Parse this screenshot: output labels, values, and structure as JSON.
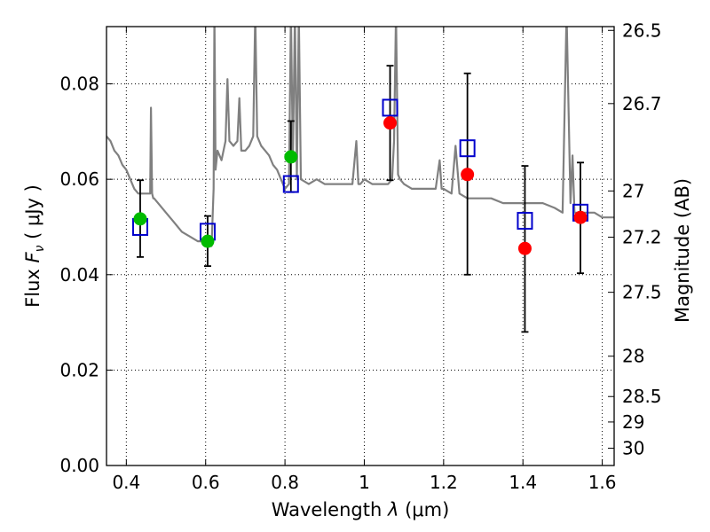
{
  "chart_data": {
    "type": "scatter",
    "xlabel": "Wavelength  λ (μm)",
    "ylabel": "Flux  Fν  ( μJy )",
    "ylabel_parts": {
      "pre": "Flux  ",
      "var": "F",
      "sub": "ν",
      "post": "  ( μJy )"
    },
    "xlabel_parts": {
      "pre": "Wavelength  ",
      "var": "λ",
      "post": " (μm)"
    },
    "y2label": "Magnitude (AB)",
    "xlim": [
      0.35,
      1.63
    ],
    "ylim": [
      0.0,
      0.092
    ],
    "grid": true,
    "x_ticks": [
      {
        "value": 0.4,
        "label": "0.4"
      },
      {
        "value": 0.6,
        "label": "0.6"
      },
      {
        "value": 0.8,
        "label": "0.8"
      },
      {
        "value": 1.0,
        "label": "1"
      },
      {
        "value": 1.2,
        "label": "1.2"
      },
      {
        "value": 1.4,
        "label": "1.4"
      },
      {
        "value": 1.6,
        "label": "1.6"
      }
    ],
    "y_ticks": [
      {
        "value": 0.0,
        "label": "0.00"
      },
      {
        "value": 0.02,
        "label": "0.02"
      },
      {
        "value": 0.04,
        "label": "0.04"
      },
      {
        "value": 0.06,
        "label": "0.06"
      },
      {
        "value": 0.08,
        "label": "0.08"
      }
    ],
    "y2_ticks": [
      {
        "mag": 26.5,
        "label": "26.5"
      },
      {
        "mag": 26.7,
        "label": "26.7"
      },
      {
        "mag": 27.0,
        "label": "27"
      },
      {
        "mag": 27.2,
        "label": "27.2"
      },
      {
        "mag": 27.5,
        "label": "27.5"
      },
      {
        "mag": 28.0,
        "label": "28"
      },
      {
        "mag": 28.5,
        "label": "28.5"
      },
      {
        "mag": 29.0,
        "label": "29"
      },
      {
        "mag": 30.0,
        "label": "30"
      }
    ],
    "colors": {
      "spectrum": "#808080",
      "optical_points": "#00bb00",
      "nir_points": "#ff0000",
      "model_boxes": "#0000cc",
      "errorbars": "#000000",
      "grid": "#000000"
    },
    "spectrum": {
      "x": [
        0.35,
        0.36,
        0.37,
        0.38,
        0.39,
        0.4,
        0.41,
        0.42,
        0.43,
        0.44,
        0.45,
        0.46,
        0.462,
        0.465,
        0.468,
        0.47,
        0.48,
        0.5,
        0.52,
        0.54,
        0.56,
        0.58,
        0.6,
        0.61,
        0.615,
        0.62,
        0.622,
        0.625,
        0.63,
        0.64,
        0.65,
        0.655,
        0.66,
        0.67,
        0.68,
        0.685,
        0.69,
        0.7,
        0.71,
        0.72,
        0.725,
        0.73,
        0.74,
        0.75,
        0.76,
        0.77,
        0.78,
        0.79,
        0.8,
        0.81,
        0.815,
        0.82,
        0.825,
        0.83,
        0.835,
        0.84,
        0.86,
        0.88,
        0.9,
        0.92,
        0.95,
        0.97,
        0.98,
        0.985,
        0.99,
        1.0,
        1.02,
        1.04,
        1.06,
        1.07,
        1.075,
        1.08,
        1.085,
        1.09,
        1.1,
        1.12,
        1.15,
        1.18,
        1.19,
        1.195,
        1.2,
        1.22,
        1.23,
        1.24,
        1.26,
        1.28,
        1.3,
        1.32,
        1.35,
        1.38,
        1.4,
        1.42,
        1.45,
        1.48,
        1.5,
        1.51,
        1.52,
        1.525,
        1.53,
        1.55,
        1.58,
        1.6,
        1.63
      ],
      "y": [
        0.069,
        0.068,
        0.066,
        0.065,
        0.063,
        0.062,
        0.06,
        0.058,
        0.057,
        0.057,
        0.057,
        0.057,
        0.075,
        0.057,
        0.056,
        0.056,
        0.055,
        0.053,
        0.051,
        0.049,
        0.048,
        0.047,
        0.047,
        0.047,
        0.046,
        0.058,
        0.095,
        0.062,
        0.066,
        0.064,
        0.068,
        0.081,
        0.068,
        0.067,
        0.068,
        0.077,
        0.066,
        0.066,
        0.067,
        0.069,
        0.095,
        0.069,
        0.067,
        0.066,
        0.065,
        0.063,
        0.062,
        0.06,
        0.058,
        0.059,
        0.095,
        0.064,
        0.095,
        0.06,
        0.095,
        0.06,
        0.059,
        0.06,
        0.059,
        0.059,
        0.059,
        0.059,
        0.068,
        0.059,
        0.059,
        0.06,
        0.059,
        0.059,
        0.059,
        0.06,
        0.068,
        0.095,
        0.061,
        0.06,
        0.059,
        0.058,
        0.058,
        0.058,
        0.064,
        0.058,
        0.058,
        0.057,
        0.067,
        0.057,
        0.056,
        0.056,
        0.056,
        0.056,
        0.055,
        0.055,
        0.055,
        0.055,
        0.055,
        0.054,
        0.053,
        0.095,
        0.055,
        0.065,
        0.053,
        0.053,
        0.053,
        0.052,
        0.052
      ]
    },
    "series": [
      {
        "role": "optical_points",
        "x": [
          0.435,
          0.605,
          0.815
        ],
        "y": [
          0.0517,
          0.047,
          0.0647
        ],
        "yerr_low": [
          0.0437,
          0.0418,
          0.0573
        ],
        "yerr_high": [
          0.0598,
          0.0523,
          0.0722
        ]
      },
      {
        "role": "nir_points",
        "x": [
          1.065,
          1.26,
          1.405,
          1.545
        ],
        "y": [
          0.0718,
          0.061,
          0.0455,
          0.052
        ],
        "yerr_low": [
          0.0598,
          0.04,
          0.028,
          0.0403
        ],
        "yerr_high": [
          0.0838,
          0.0822,
          0.0628,
          0.0635
        ]
      },
      {
        "role": "model_boxes",
        "x": [
          0.435,
          0.605,
          0.815,
          1.065,
          1.26,
          1.405,
          1.545
        ],
        "y": [
          0.05,
          0.049,
          0.059,
          0.075,
          0.0665,
          0.0513,
          0.053
        ]
      }
    ]
  }
}
